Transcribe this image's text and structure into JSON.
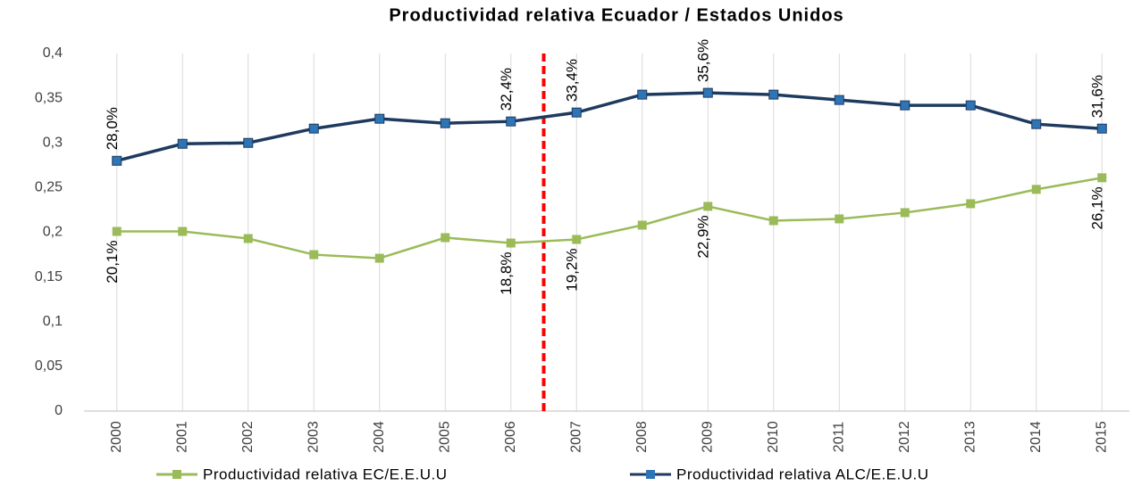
{
  "chart_data": {
    "type": "line",
    "title": "Productividad relativa Ecuador / Estados Unidos",
    "categories": [
      "2000",
      "2001",
      "2002",
      "2003",
      "2004",
      "2005",
      "2006",
      "2007",
      "2008",
      "2009",
      "2010",
      "2011",
      "2012",
      "2013",
      "2014",
      "2015"
    ],
    "series": [
      {
        "name": "Productividad relativa EC/E.E.U.U",
        "color": "#9bbb59",
        "values": [
          0.201,
          0.201,
          0.193,
          0.175,
          0.171,
          0.194,
          0.188,
          0.192,
          0.208,
          0.229,
          0.213,
          0.215,
          0.222,
          0.232,
          0.248,
          0.261
        ],
        "value_labels": [
          "20,1%",
          null,
          null,
          null,
          null,
          null,
          "18,8%",
          "19,2%",
          null,
          "22,9%",
          null,
          null,
          null,
          null,
          null,
          "26,1%"
        ]
      },
      {
        "name": "Productividad relativa ALC/E.E.U.U",
        "color": "#1f3a5f",
        "values": [
          0.28,
          0.299,
          0.3,
          0.316,
          0.327,
          0.322,
          0.324,
          0.334,
          0.354,
          0.356,
          0.354,
          0.348,
          0.342,
          0.342,
          0.321,
          0.316
        ],
        "value_labels": [
          "28,0%",
          null,
          null,
          null,
          null,
          null,
          "32,4%",
          "33,4%",
          null,
          "35,6%",
          null,
          null,
          null,
          null,
          null,
          "31,6%"
        ]
      }
    ],
    "ylim": [
      0,
      0.4
    ],
    "yticks": [
      0,
      {
        "value": 0.05,
        "label": "0,05"
      },
      {
        "value": 0.1,
        "label": "0,1"
      },
      {
        "value": 0.15,
        "label": "0,15"
      },
      {
        "value": 0.2,
        "label": "0,2"
      },
      {
        "value": 0.25,
        "label": "0,25"
      },
      {
        "value": 0.3,
        "label": "0,3"
      },
      {
        "value": 0.35,
        "label": "0,35"
      },
      {
        "value": 0.4,
        "label": "0,4"
      }
    ],
    "grid": true,
    "legend": "bottom"
  }
}
